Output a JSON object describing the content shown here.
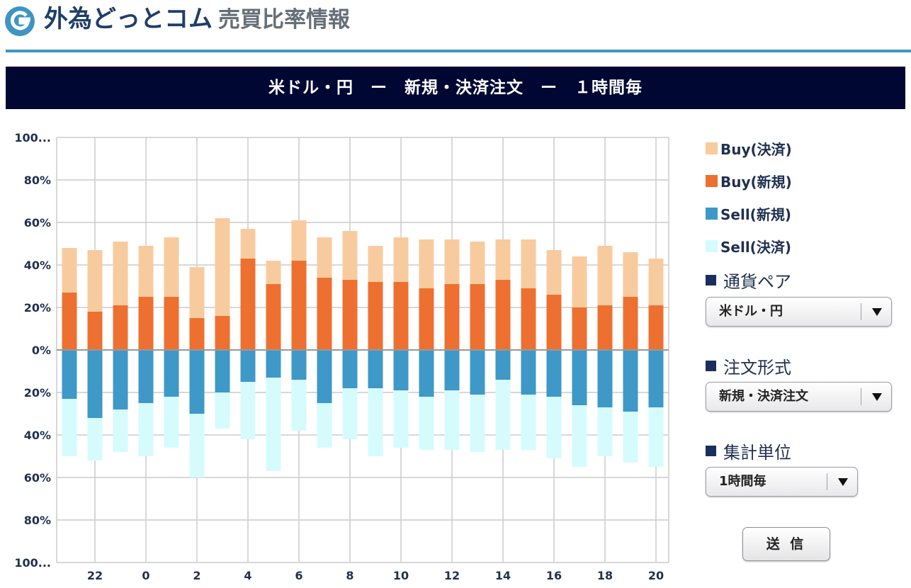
{
  "header": {
    "logo_text": "外為どっとコム",
    "page_title": "売買比率情報"
  },
  "title_bar": "米ドル・円　ー　新規・決済注文　ー　１時間毎",
  "legend": [
    {
      "label": "Buy(決済)",
      "color": "#f8cb9e"
    },
    {
      "label": "Buy(新規)",
      "color": "#ed7031"
    },
    {
      "label": "Sell(新規)",
      "color": "#3e98c8"
    },
    {
      "label": "Sell(決済)",
      "color": "#d5fbfd"
    }
  ],
  "controls": {
    "currency_pair": {
      "label": "通貨ペア",
      "value": "米ドル・円"
    },
    "order_type": {
      "label": "注文形式",
      "value": "新規・決済注文"
    },
    "aggregation": {
      "label": "集計単位",
      "value": "1時間毎"
    },
    "send_label": "送 信"
  },
  "colors": {
    "title_bar_bg": "#000733",
    "header_rule": "#3d95c2",
    "buy_settle": "#f8cb9e",
    "buy_new": "#ed7031",
    "sell_new": "#3e98c8",
    "sell_settle": "#d5fbfd"
  },
  "chart_data": {
    "type": "bar",
    "stacked": true,
    "y_tick_labels": [
      "100...",
      "80%",
      "60%",
      "40%",
      "20%",
      "0%",
      "20%",
      "40%",
      "60%",
      "80%",
      "100..."
    ],
    "ylim": [
      -100,
      100
    ],
    "x_tick_labels": [
      "22",
      "0",
      "2",
      "4",
      "6",
      "8",
      "10",
      "12",
      "14",
      "16",
      "18",
      "20"
    ],
    "grid": true,
    "legend_position": "right",
    "categories": [
      "21",
      "22",
      "23",
      "0",
      "1",
      "2",
      "3",
      "4",
      "5",
      "6",
      "7",
      "8",
      "9",
      "10",
      "11",
      "12",
      "13",
      "14",
      "15",
      "16",
      "17",
      "18",
      "19",
      "20"
    ],
    "series": [
      {
        "name": "Buy(新規)",
        "values": [
          27,
          18,
          21,
          25,
          25,
          15,
          16,
          43,
          31,
          42,
          34,
          33,
          32,
          32,
          29,
          31,
          31,
          33,
          29,
          26,
          20,
          21,
          25,
          21
        ]
      },
      {
        "name": "Buy(決済)",
        "values": [
          21,
          29,
          30,
          24,
          28,
          24,
          46,
          14,
          11,
          19,
          19,
          23,
          17,
          21,
          23,
          21,
          20,
          19,
          23,
          21,
          24,
          28,
          21,
          22
        ]
      },
      {
        "name": "Sell(新規)",
        "values": [
          23,
          32,
          28,
          25,
          22,
          30,
          20,
          15,
          13,
          14,
          25,
          18,
          18,
          19,
          22,
          19,
          21,
          14,
          21,
          22,
          26,
          27,
          29,
          27
        ]
      },
      {
        "name": "Sell(決済)",
        "values": [
          27,
          20,
          20,
          25,
          24,
          30,
          17,
          27,
          44,
          24,
          21,
          24,
          32,
          27,
          25,
          28,
          27,
          33,
          26,
          29,
          29,
          23,
          24,
          28
        ]
      }
    ]
  }
}
